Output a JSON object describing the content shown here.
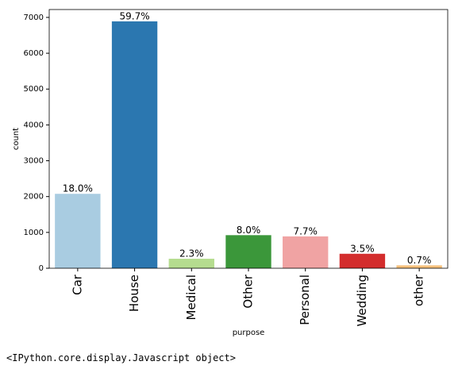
{
  "chart_data": {
    "type": "bar",
    "x_label": "purpose",
    "y_label": "count",
    "categories": [
      "Car",
      "House",
      "Medical",
      "Other",
      "Personal",
      "Wedding",
      "other"
    ],
    "values": [
      2077,
      6890,
      265,
      923,
      889,
      404,
      81
    ],
    "bar_labels": [
      "18.0%",
      "59.7%",
      "2.3%",
      "8.0%",
      "7.7%",
      "3.5%",
      "0.7%"
    ],
    "colors": [
      "#a9cce1",
      "#2b77b0",
      "#b5dc8f",
      "#3b973a",
      "#f0a3a3",
      "#d32d2d",
      "#f6c17c"
    ],
    "ylim": [
      0,
      7220
    ],
    "yticks": [
      0,
      1000,
      2000,
      3000,
      4000,
      5000,
      6000,
      7000
    ]
  },
  "output_text": "<IPython.core.display.Javascript object>"
}
